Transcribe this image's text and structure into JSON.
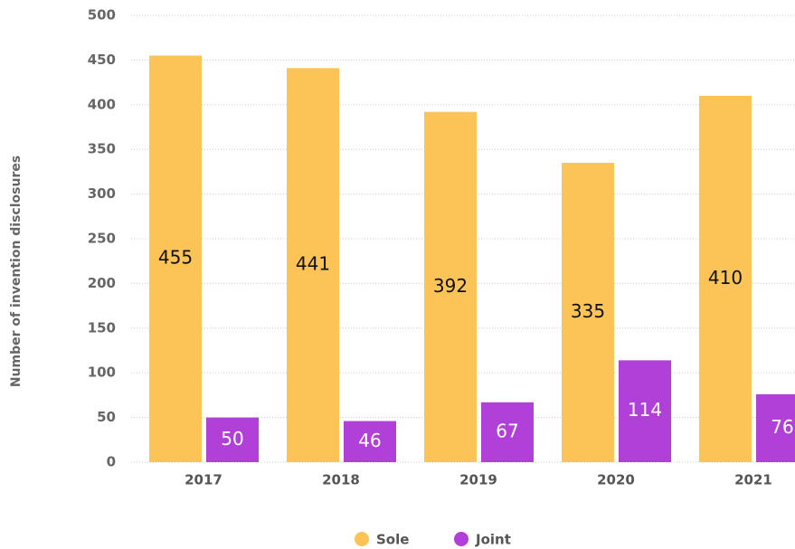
{
  "chart_data": {
    "type": "bar",
    "y_label": "Number of invention disclosures",
    "categories": [
      "2017",
      "2018",
      "2019",
      "2020",
      "2021"
    ],
    "series": [
      {
        "name": "Sole",
        "color": "#fcc357",
        "values": [
          455,
          441,
          392,
          335,
          410
        ]
      },
      {
        "name": "Joint",
        "color": "#b140d9",
        "values": [
          50,
          46,
          67,
          114,
          76
        ]
      }
    ],
    "ylim": [
      0,
      500
    ],
    "yticks": [
      0,
      50,
      100,
      150,
      200,
      250,
      300,
      350,
      400,
      450,
      500
    ],
    "grid": true,
    "legend": "bottom"
  }
}
